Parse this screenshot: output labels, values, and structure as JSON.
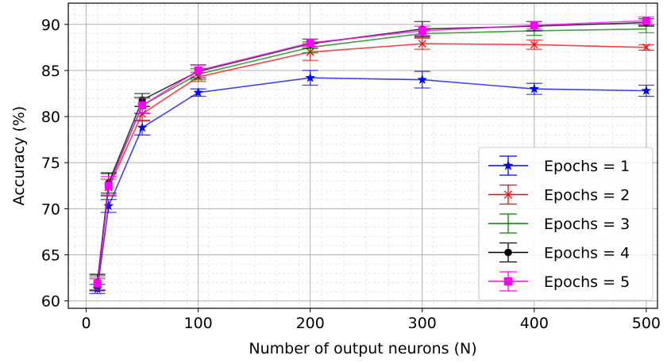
{
  "chart_data": {
    "type": "line",
    "xlabel": "Number of output neurons (N)",
    "ylabel": "Accuracy (%)",
    "x_ticks": [
      0,
      100,
      200,
      300,
      400,
      500
    ],
    "y_ticks": [
      60,
      65,
      70,
      75,
      80,
      85,
      90
    ],
    "x_tick_labels": [
      "0",
      "100",
      "200",
      "300",
      "400",
      "500"
    ],
    "y_tick_labels": [
      "60",
      "65",
      "70",
      "75",
      "80",
      "85",
      "90"
    ],
    "grid": true,
    "minor_grid": true,
    "legend_position": "lower-right",
    "x": [
      10,
      20,
      50,
      100,
      200,
      300,
      400,
      500
    ],
    "series": [
      {
        "name": "Epochs = 1",
        "marker": "star",
        "color": "#0000ff",
        "values": [
          61.3,
          70.3,
          78.8,
          82.6,
          84.2,
          84.0,
          83.0,
          82.8
        ],
        "errors": [
          0.5,
          0.7,
          0.8,
          0.4,
          0.8,
          0.9,
          0.6,
          0.6
        ]
      },
      {
        "name": "Epochs = 2",
        "marker": "x",
        "color": "#ff0000",
        "values": [
          61.8,
          72.3,
          80.3,
          84.3,
          87.0,
          87.9,
          87.8,
          87.5
        ],
        "errors": [
          0.6,
          0.9,
          0.8,
          0.5,
          0.9,
          0.6,
          0.5,
          0.3
        ]
      },
      {
        "name": "Epochs = 3",
        "marker": "none",
        "color": "#008000",
        "values": [
          62.0,
          72.6,
          81.2,
          84.6,
          87.5,
          89.0,
          89.3,
          89.5
        ],
        "errors": [
          0.8,
          1.2,
          0.9,
          0.6,
          0.6,
          0.4,
          0.5,
          0.4
        ]
      },
      {
        "name": "Epochs = 4",
        "marker": "circle",
        "color": "#000000",
        "values": [
          62.0,
          72.8,
          81.8,
          84.9,
          87.9,
          89.5,
          89.8,
          90.2
        ],
        "errors": [
          0.9,
          1.1,
          0.7,
          0.7,
          0.5,
          0.8,
          0.5,
          0.4
        ]
      },
      {
        "name": "Epochs = 5",
        "marker": "square",
        "color": "#ff00ff",
        "values": [
          61.9,
          72.5,
          81.2,
          85.0,
          88.0,
          89.3,
          89.9,
          90.4
        ],
        "errors": [
          0.7,
          1.0,
          0.8,
          0.6,
          0.4,
          0.5,
          0.4,
          0.4
        ]
      }
    ]
  }
}
